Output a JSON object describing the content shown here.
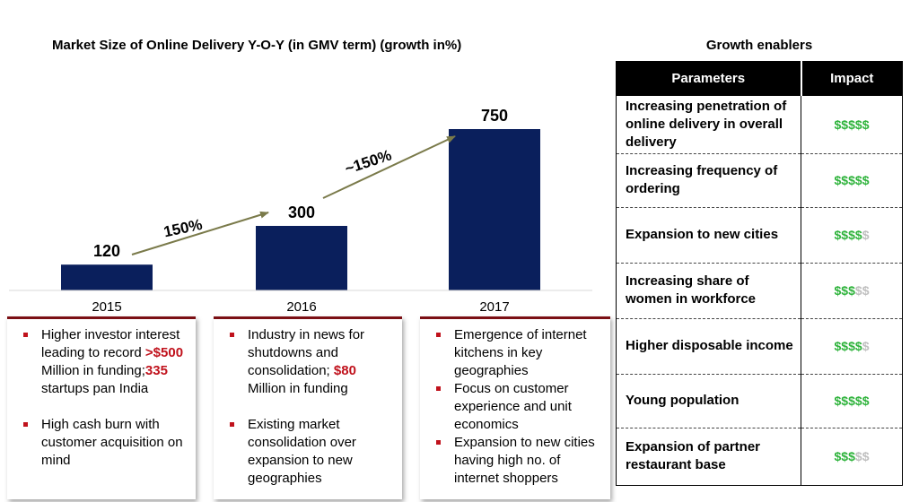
{
  "chart_data": {
    "type": "bar",
    "title": "Market Size of Online Delivery Y-O-Y (in GMV term) (growth in%)",
    "categories": [
      "2015",
      "2016",
      "2017"
    ],
    "values": [
      120,
      300,
      750
    ],
    "ylim": [
      0,
      900
    ],
    "grid": false,
    "bar_color": "#0a1f5c",
    "annotations": [
      {
        "text": "150%",
        "from": "2015",
        "to": "2016"
      },
      {
        "text": "~150%",
        "from": "2016",
        "to": "2017"
      }
    ],
    "annotation_color": "#7a7a4a"
  },
  "notes": [
    {
      "bullets": [
        [
          {
            "t": "Higher investor interest leading to record "
          },
          {
            "t": ">$500",
            "hl": true
          },
          {
            "t": " Million in funding;"
          },
          {
            "t": "335",
            "hl": true
          },
          {
            "t": " startups pan India"
          }
        ],
        [
          {
            "t": "High cash burn with customer acquisition on mind"
          }
        ]
      ]
    },
    {
      "bullets": [
        [
          {
            "t": "Industry in news for shutdowns and consolidation; "
          },
          {
            "t": "$80",
            "hl": true
          },
          {
            "t": " Million in funding"
          }
        ],
        [
          {
            "t": "Existing market consolidation over expansion to new geographies"
          }
        ]
      ]
    },
    {
      "bullets": [
        [
          {
            "t": "Emergence of internet kitchens in key geographies"
          }
        ],
        [
          {
            "t": "Focus on customer experience and unit economics"
          }
        ],
        [
          {
            "t": "Expansion to new cities having high no. of internet shoppers"
          }
        ]
      ]
    }
  ],
  "enablers": {
    "title": "Growth enablers",
    "header_param": "Parameters",
    "header_impact": "Impact",
    "max_rating": 5,
    "symbol": "$",
    "rows": [
      {
        "param": "Increasing penetration of online delivery in overall delivery",
        "rating": 5
      },
      {
        "param": "Increasing frequency of ordering",
        "rating": 5
      },
      {
        "param": "Expansion to new cities",
        "rating": 4
      },
      {
        "param": "Increasing share of women in workforce",
        "rating": 3
      },
      {
        "param": "Higher disposable income",
        "rating": 4
      },
      {
        "param": "Young population",
        "rating": 5
      },
      {
        "param": "Expansion of partner restaurant base",
        "rating": 3
      }
    ],
    "on_color": "#2fb33c",
    "off_color": "#bfbfbf"
  }
}
